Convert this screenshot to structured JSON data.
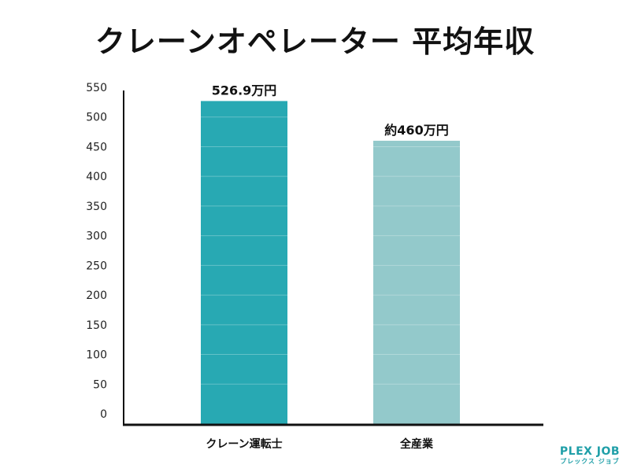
{
  "chart_data": {
    "type": "bar",
    "title": "クレーンオペレーター 平均年収",
    "categories": [
      "クレーン運転士",
      "全産業"
    ],
    "values": [
      526.9,
      460
    ],
    "data_labels": [
      "526.9万円",
      "約460万円"
    ],
    "bar_colors": [
      "#28a9b3",
      "#93c9cb"
    ],
    "yticks": [
      0,
      50,
      100,
      150,
      200,
      250,
      300,
      350,
      400,
      450,
      500,
      550
    ],
    "ylim": [
      0,
      550
    ],
    "xlabel": "",
    "ylabel": "",
    "grid": false
  },
  "logo": {
    "main": "PLEX JOB",
    "sub": "プレックス ジョブ"
  }
}
